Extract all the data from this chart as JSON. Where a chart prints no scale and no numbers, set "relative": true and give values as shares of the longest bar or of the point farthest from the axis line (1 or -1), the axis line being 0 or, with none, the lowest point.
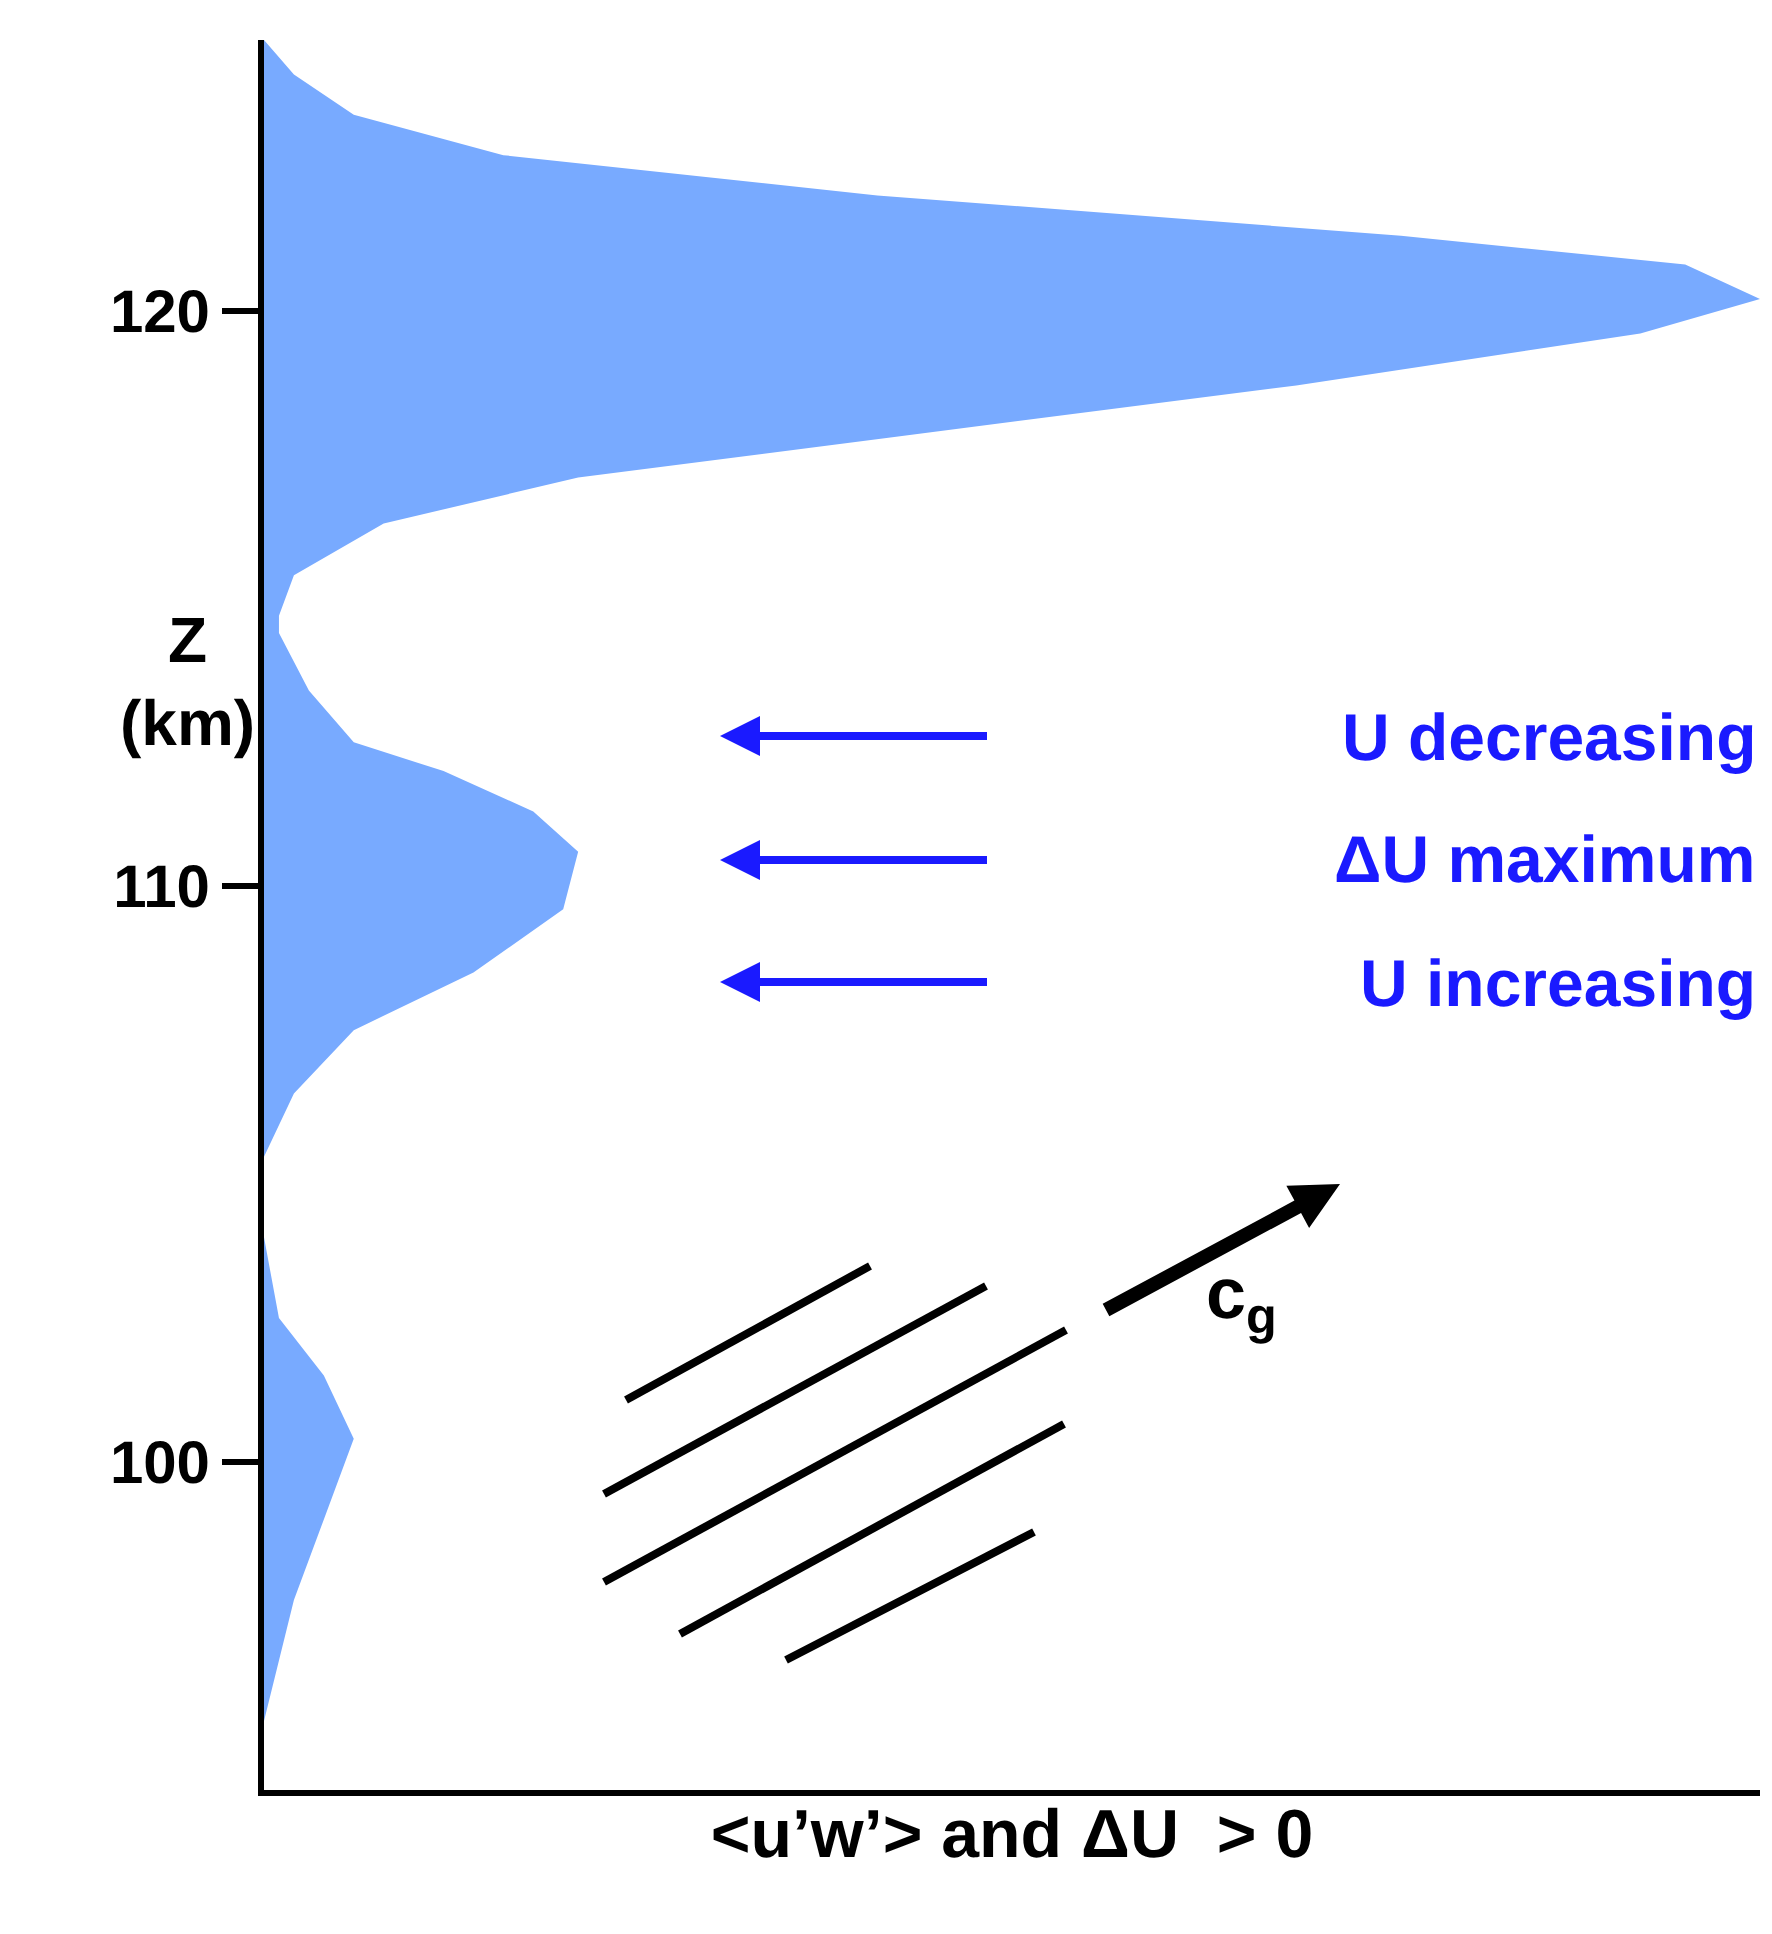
{
  "chart_data": {
    "type": "area",
    "orientation": "horizontal",
    "relative": true,
    "color": "#78aaff",
    "x": [
      94.3,
      95.5,
      97.6,
      99,
      100.4,
      101.5,
      102.5,
      103.9,
      105.3,
      106.4,
      107.5,
      108.5,
      109.6,
      110.6,
      111.3,
      112,
      112.5,
      113.4,
      114.4,
      114.7,
      115.4,
      116.3,
      117.1,
      117.8,
      118.7,
      119.6,
      120.2,
      120.8,
      121.3,
      122,
      122.7,
      123.4,
      124.1,
      124.7
    ],
    "values": [
      0,
      0.0,
      0.02,
      0.04,
      0.06,
      0.04,
      0.01,
      0.0,
      0.0,
      0.02,
      0.06,
      0.14,
      0.2,
      0.21,
      0.18,
      0.12,
      0.06,
      0.03,
      0.01,
      0.01,
      0.02,
      0.08,
      0.21,
      0.42,
      0.69,
      0.92,
      1.0,
      0.95,
      0.76,
      0.41,
      0.16,
      0.06,
      0.02,
      0
    ],
    "ylim": [
      94.3,
      124.7
    ],
    "yticks": [
      100,
      110,
      120
    ],
    "xlabel": "<u’w’> and ΔU  > 0",
    "ylabel": "Z\n(km)",
    "annotations": [
      "U decreasing",
      "ΔU maximum",
      "U increasing",
      "c$_{g}$"
    ]
  }
}
